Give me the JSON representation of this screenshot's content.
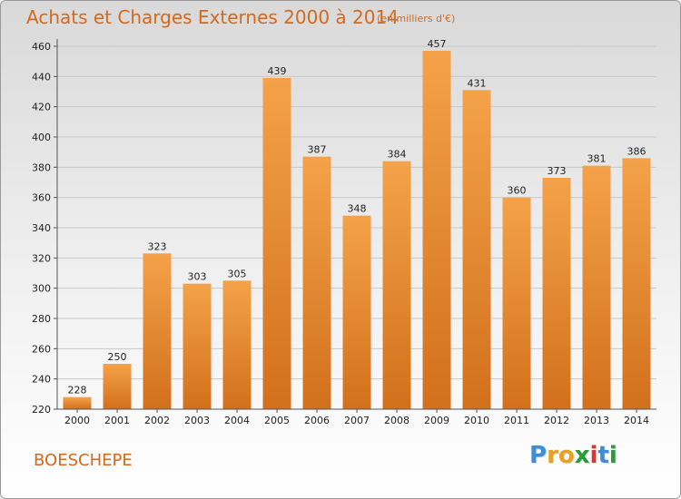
{
  "header": {
    "title": "Achats et Charges Externes 2000 à 2014",
    "subtitle": "(en milliers d'€)"
  },
  "footer": {
    "location": "BOESCHEPE",
    "logo_letters": [
      "P",
      "r",
      "o",
      "x",
      "i",
      "t",
      "i"
    ],
    "logo_colors": [
      "#3a8fd8",
      "#e8a020",
      "#e8a020",
      "#2a9a3a",
      "#d03a3a",
      "#3a8fd8",
      "#2a9a3a"
    ]
  },
  "colors": {
    "bar_top": "#f4a24a",
    "bar_bottom": "#d2701c",
    "grid": "#c8c8c8",
    "axis": "#555555"
  },
  "chart_data": {
    "type": "bar",
    "categories": [
      "2000",
      "2001",
      "2002",
      "2003",
      "2004",
      "2005",
      "2006",
      "2007",
      "2008",
      "2009",
      "2010",
      "2011",
      "2012",
      "2013",
      "2014"
    ],
    "values": [
      228,
      250,
      323,
      303,
      305,
      439,
      387,
      348,
      384,
      457,
      431,
      360,
      373,
      381,
      386
    ],
    "title": "Achats et Charges Externes 2000 à 2014",
    "xlabel": "",
    "ylabel": "",
    "ylim": [
      220,
      460
    ],
    "yticks": [
      220,
      240,
      260,
      280,
      300,
      320,
      340,
      360,
      380,
      400,
      420,
      440,
      460
    ],
    "grid": true,
    "data_labels": true
  }
}
